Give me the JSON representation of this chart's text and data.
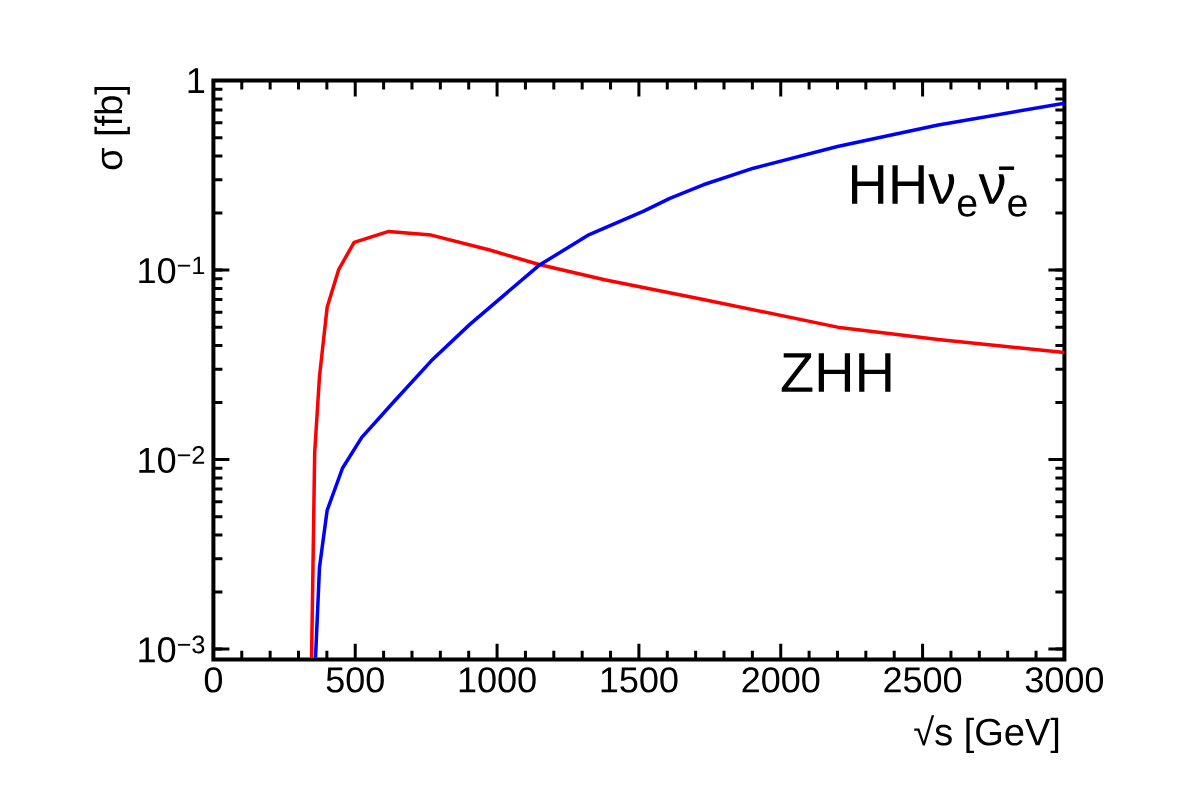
{
  "chart_data": {
    "type": "line",
    "xlabel": "√s [GeV]",
    "ylabel": "σ [fb]",
    "log": "y",
    "xlim": [
      0,
      3000
    ],
    "ylim": [
      0.00088,
      1
    ],
    "xticks": [
      0,
      500,
      1000,
      1500,
      2000,
      2500,
      3000
    ],
    "yticks": [
      {
        "value": 0.001,
        "label": "10$^{−3}$"
      },
      {
        "value": 0.01,
        "label": "10$^{−2}$"
      },
      {
        "value": 0.1,
        "label": "10$^{−1}$"
      },
      1
    ],
    "series": [
      {
        "name": "ZHH",
        "color": "#ff0000",
        "x": [
          346,
          351,
          357,
          374,
          401,
          442,
          496,
          618,
          768,
          971,
          1148,
          1379,
          1727,
          2200,
          2555,
          3000
        ],
        "values": [
          0.0009,
          0.0027,
          0.0109,
          0.0275,
          0.0637,
          0.101,
          0.14,
          0.16,
          0.153,
          0.128,
          0.107,
          0.089,
          0.07,
          0.05,
          0.043,
          0.0367
        ]
      },
      {
        "name": "HHν$_{e}$ν̄$_{e}$",
        "color": "#0000ff",
        "x": [
          360,
          374,
          401,
          455,
          523,
          632,
          768,
          904,
          1148,
          1325,
          1515,
          1609,
          1727,
          1904,
          2200,
          2555,
          3000
        ],
        "values": [
          0.0009,
          0.0027,
          0.0054,
          0.009,
          0.0131,
          0.0199,
          0.0332,
          0.0517,
          0.106,
          0.154,
          0.204,
          0.239,
          0.282,
          0.345,
          0.449,
          0.583,
          0.76
        ]
      }
    ]
  }
}
